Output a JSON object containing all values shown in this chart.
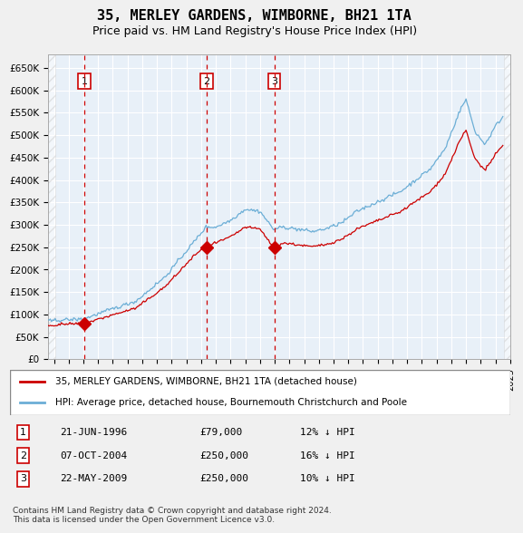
{
  "title": "35, MERLEY GARDENS, WIMBORNE, BH21 1TA",
  "subtitle": "Price paid vs. HM Land Registry's House Price Index (HPI)",
  "sale_dates": [
    "1996-06-21",
    "2004-10-07",
    "2009-05-22"
  ],
  "sale_prices": [
    79000,
    250000,
    250000
  ],
  "sale_labels": [
    "1",
    "2",
    "3"
  ],
  "legend_line1": "35, MERLEY GARDENS, WIMBORNE, BH21 1TA (detached house)",
  "legend_line2": "HPI: Average price, detached house, Bournemouth Christchurch and Poole",
  "table_rows": [
    [
      "1",
      "21-JUN-1996",
      "£79,000",
      "12% ↓ HPI"
    ],
    [
      "2",
      "07-OCT-2004",
      "£250,000",
      "16% ↓ HPI"
    ],
    [
      "3",
      "22-MAY-2009",
      "£250,000",
      "10% ↓ HPI"
    ]
  ],
  "footer": "Contains HM Land Registry data © Crown copyright and database right 2024.\nThis data is licensed under the Open Government Licence v3.0.",
  "hpi_color": "#6baed6",
  "price_color": "#cc0000",
  "sale_marker_color": "#cc0000",
  "vline_color": "#cc0000",
  "bg_color": "#dce9f5",
  "plot_bg": "#e8f0f8",
  "grid_color": "#ffffff",
  "ylim": [
    0,
    680000
  ],
  "ylabel_ticks": [
    0,
    50000,
    100000,
    150000,
    200000,
    250000,
    300000,
    350000,
    400000,
    450000,
    500000,
    550000,
    600000,
    650000
  ],
  "xstart_year": 1994,
  "xend_year": 2025
}
